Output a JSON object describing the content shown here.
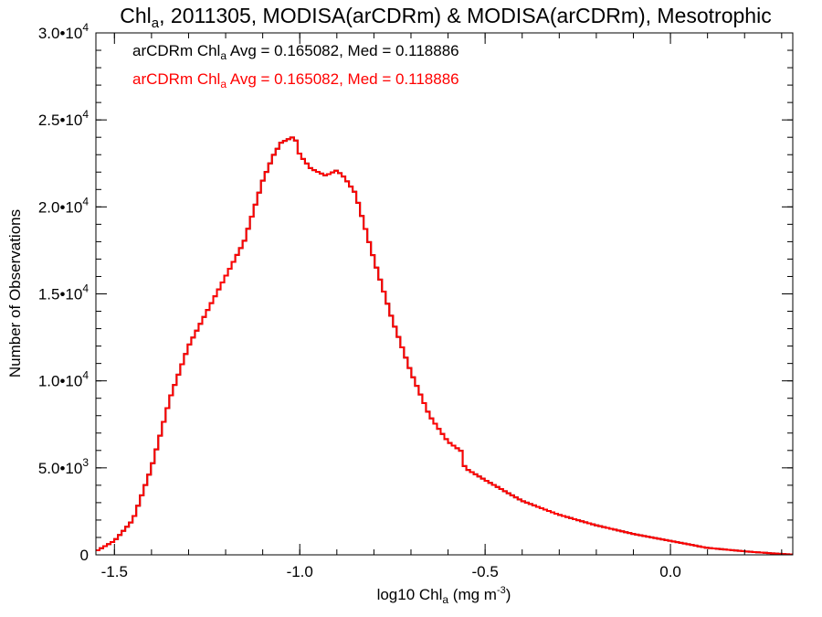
{
  "chart_data": {
    "type": "line",
    "title": {
      "pre": "Chl",
      "sub": "a",
      "post": ", 2011305, MODISA(arCDRm) & MODISA(arCDRm), Mesotrophic"
    },
    "xlabel": {
      "pre": "log10 Chl",
      "sub": "a",
      "post": " (mg m",
      "sup": "-3",
      "end": ")"
    },
    "ylabel": "Number of Observations",
    "xlim": [
      -1.55,
      0.33
    ],
    "ylim": [
      0,
      30000
    ],
    "x_ticks": [
      {
        "value": -1.5,
        "label": "-1.5"
      },
      {
        "value": -1.0,
        "label": "-1.0"
      },
      {
        "value": -0.5,
        "label": "-0.5"
      },
      {
        "value": 0.0,
        "label": "0.0"
      }
    ],
    "x_minor_step": 0.1,
    "y_ticks": [
      {
        "value": 0,
        "mant": "0",
        "exp": ""
      },
      {
        "value": 5000,
        "mant": "5.0•10",
        "exp": "3"
      },
      {
        "value": 10000,
        "mant": "1.0•10",
        "exp": "4"
      },
      {
        "value": 15000,
        "mant": "1.5•10",
        "exp": "4"
      },
      {
        "value": 20000,
        "mant": "2.0•10",
        "exp": "4"
      },
      {
        "value": 25000,
        "mant": "2.5•10",
        "exp": "4"
      },
      {
        "value": 30000,
        "mant": "3.0•10",
        "exp": "4"
      }
    ],
    "y_minor_step": 1000,
    "legend": [
      {
        "pre": "arCDRm Chl",
        "sub": "a",
        "post": " Avg = 0.165082, Med = 0.118886",
        "color": "#000000"
      },
      {
        "pre": "arCDRm Chl",
        "sub": "a",
        "post": " Avg = 0.165082, Med = 0.118886",
        "color": "#ff0000"
      }
    ],
    "series": [
      {
        "color": "#000000",
        "x": [
          -1.55,
          -1.5,
          -1.45,
          -1.4,
          -1.35,
          -1.3,
          -1.25,
          -1.2,
          -1.15,
          -1.1,
          -1.07,
          -1.05,
          -1.02,
          -1.01,
          -1.0,
          -0.97,
          -0.93,
          -0.9,
          -0.88,
          -0.85,
          -0.8,
          -0.75,
          -0.7,
          -0.65,
          -0.6,
          -0.56,
          -0.555,
          -0.5,
          -0.4,
          -0.3,
          -0.2,
          -0.1,
          0.0,
          0.1,
          0.2,
          0.3,
          0.33
        ],
        "y": [
          200,
          800,
          2000,
          5000,
          9000,
          12000,
          14000,
          16000,
          18000,
          21500,
          23000,
          23700,
          24000,
          23800,
          23000,
          22200,
          21800,
          22100,
          21700,
          20800,
          17000,
          13500,
          10500,
          8000,
          6500,
          5900,
          5000,
          4300,
          3100,
          2300,
          1700,
          1200,
          800,
          400,
          200,
          50,
          20
        ]
      },
      {
        "color": "#ff0000",
        "x": [
          -1.55,
          -1.5,
          -1.45,
          -1.4,
          -1.35,
          -1.3,
          -1.25,
          -1.2,
          -1.15,
          -1.1,
          -1.07,
          -1.05,
          -1.02,
          -1.01,
          -1.0,
          -0.97,
          -0.93,
          -0.9,
          -0.88,
          -0.85,
          -0.8,
          -0.75,
          -0.7,
          -0.65,
          -0.6,
          -0.56,
          -0.555,
          -0.5,
          -0.4,
          -0.3,
          -0.2,
          -0.1,
          0.0,
          0.1,
          0.2,
          0.3,
          0.33
        ],
        "y": [
          200,
          800,
          2000,
          5000,
          9000,
          12000,
          14000,
          16000,
          18000,
          21500,
          23000,
          23700,
          24000,
          23800,
          23000,
          22200,
          21800,
          22100,
          21700,
          20800,
          17000,
          13500,
          10500,
          8000,
          6500,
          5900,
          5000,
          4300,
          3100,
          2300,
          1700,
          1200,
          800,
          400,
          200,
          50,
          20
        ]
      }
    ]
  }
}
